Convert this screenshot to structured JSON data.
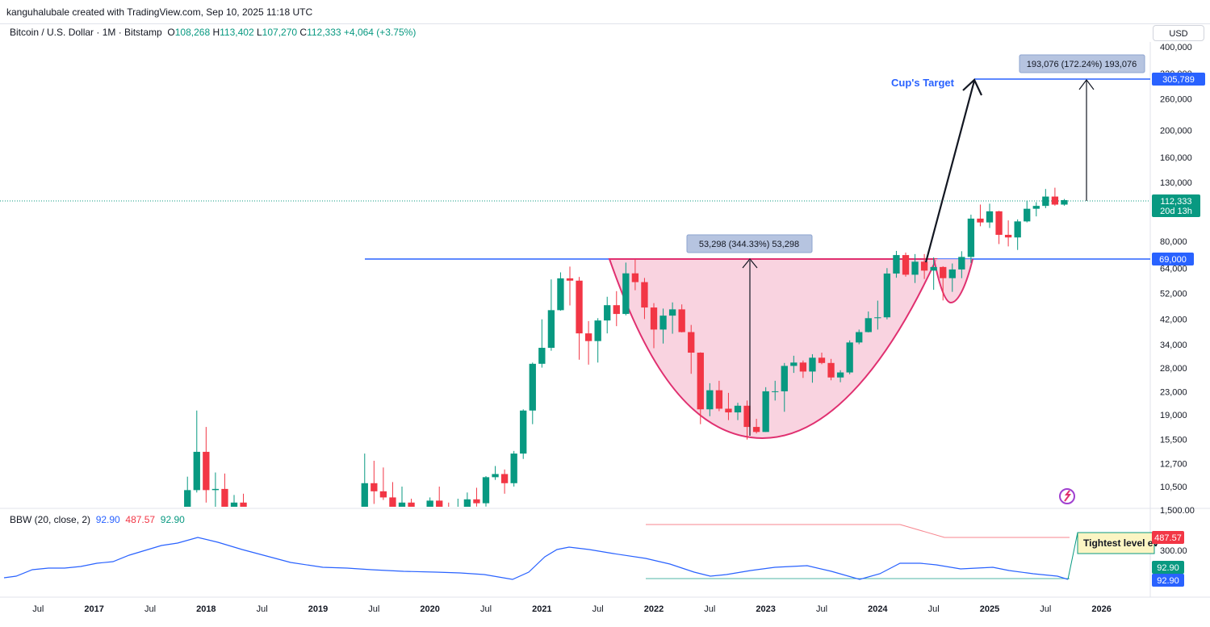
{
  "header": {
    "author_line": "kanguhalubale created with TradingView.com, Sep 10, 2025 11:18 UTC",
    "symbol_title": "Bitcoin / U.S. Dollar · 1M · Bitstamp",
    "open_label": "O",
    "open": "108,268",
    "high_label": "H",
    "high": "113,402",
    "low_label": "L",
    "low": "107,270",
    "close_label": "C",
    "close": "112,333",
    "change": "+4,064 (+3.75%)",
    "currency": "USD"
  },
  "indicator": {
    "title": "BBW (20, close, 2)",
    "v1": "92.90",
    "v2": "487.57",
    "v3": "92.90",
    "badge_high": "487.57",
    "badge_a": "92.90",
    "badge_b": "92.90",
    "axis_300": "300.00",
    "callout": "Tightest level ev"
  },
  "annotations": {
    "cup_measure": "53,298 (344.33%) 53,298",
    "target_measure": "193,076 (172.24%) 193,076",
    "cup_target_label": "Cup's Target",
    "price_badge": "112,333",
    "price_timer": "20d 13h",
    "level_target": "305,789",
    "level_rim": "69,000"
  },
  "colors": {
    "up": "#089981",
    "down": "#f23645",
    "cup_fill": "#f8c8d8",
    "cup_stroke": "#e03070",
    "level_line": "#2962ff",
    "bbw_line": "#2962ff"
  },
  "chart_data": {
    "type": "candlestick",
    "scale": "log",
    "price_axis": {
      "ticks": [
        "400,000",
        "320,000",
        "260,000",
        "200,000",
        "160,000",
        "130,000",
        "80,000",
        "64,000",
        "52,000",
        "42,000",
        "34,000",
        "28,000",
        "23,000",
        "19,000",
        "15,500",
        "12,700",
        "10,500",
        "1,500.00"
      ]
    },
    "time_axis": {
      "labels": [
        "Jul",
        "2017",
        "Jul",
        "2018",
        "Jul",
        "2019",
        "Jul",
        "2020",
        "Jul",
        "2021",
        "Jul",
        "2022",
        "Jul",
        "2023",
        "Jul",
        "2024",
        "Jul",
        "2025",
        "Jul",
        "2026"
      ],
      "bold": [
        false,
        true,
        false,
        true,
        false,
        true,
        false,
        true,
        false,
        true,
        false,
        true,
        false,
        true,
        false,
        true,
        false,
        true,
        false,
        true
      ]
    },
    "candles": [
      {
        "t": "2017-11",
        "o": 6450,
        "h": 11400,
        "l": 5500,
        "c": 10200
      },
      {
        "t": "2017-12",
        "o": 10200,
        "h": 19700,
        "l": 10000,
        "c": 14000
      },
      {
        "t": "2018-01",
        "o": 14000,
        "h": 17200,
        "l": 9200,
        "c": 10200
      },
      {
        "t": "2018-02",
        "o": 10200,
        "h": 11800,
        "l": 6000,
        "c": 10300
      },
      {
        "t": "2018-03",
        "o": 10300,
        "h": 11700,
        "l": 7000,
        "c": 7000
      },
      {
        "t": "2018-04",
        "o": 7000,
        "h": 9800,
        "l": 6500,
        "c": 9200
      },
      {
        "t": "2018-05",
        "o": 9200,
        "h": 9900,
        "l": 7200,
        "c": 7500
      },
      {
        "t": "2019-06",
        "o": 8500,
        "h": 13800,
        "l": 7600,
        "c": 10800
      },
      {
        "t": "2019-07",
        "o": 10800,
        "h": 13000,
        "l": 9100,
        "c": 10100
      },
      {
        "t": "2019-08",
        "o": 10100,
        "h": 12300,
        "l": 9400,
        "c": 9600
      },
      {
        "t": "2019-09",
        "o": 9600,
        "h": 10900,
        "l": 7700,
        "c": 8300
      },
      {
        "t": "2019-10",
        "o": 8300,
        "h": 10500,
        "l": 7300,
        "c": 9200
      },
      {
        "t": "2019-11",
        "o": 9200,
        "h": 9500,
        "l": 6500,
        "c": 7550
      },
      {
        "t": "2019-12",
        "o": 7550,
        "h": 7750,
        "l": 6400,
        "c": 7200
      },
      {
        "t": "2020-01",
        "o": 7200,
        "h": 9600,
        "l": 6900,
        "c": 9350
      },
      {
        "t": "2020-02",
        "o": 9350,
        "h": 10500,
        "l": 8500,
        "c": 8550
      },
      {
        "t": "2020-03",
        "o": 8550,
        "h": 9200,
        "l": 3800,
        "c": 6400
      },
      {
        "t": "2020-04",
        "o": 6400,
        "h": 9500,
        "l": 6200,
        "c": 8600
      },
      {
        "t": "2020-05",
        "o": 8600,
        "h": 10000,
        "l": 8100,
        "c": 9450
      },
      {
        "t": "2020-06",
        "o": 9450,
        "h": 10400,
        "l": 8900,
        "c": 9150
      },
      {
        "t": "2020-07",
        "o": 9150,
        "h": 11450,
        "l": 8900,
        "c": 11350
      },
      {
        "t": "2020-08",
        "o": 11350,
        "h": 12450,
        "l": 11100,
        "c": 11650
      },
      {
        "t": "2020-09",
        "o": 11650,
        "h": 12100,
        "l": 9900,
        "c": 10800
      },
      {
        "t": "2020-10",
        "o": 10800,
        "h": 14100,
        "l": 10500,
        "c": 13800
      },
      {
        "t": "2020-11",
        "o": 13800,
        "h": 19900,
        "l": 13200,
        "c": 19700
      },
      {
        "t": "2020-12",
        "o": 19700,
        "h": 29300,
        "l": 17600,
        "c": 29000
      },
      {
        "t": "2021-01",
        "o": 29000,
        "h": 41900,
        "l": 28100,
        "c": 33100
      },
      {
        "t": "2021-02",
        "o": 33100,
        "h": 58300,
        "l": 32300,
        "c": 45200
      },
      {
        "t": "2021-03",
        "o": 45200,
        "h": 61800,
        "l": 45000,
        "c": 58800
      },
      {
        "t": "2021-04",
        "o": 58800,
        "h": 64800,
        "l": 47000,
        "c": 57700
      },
      {
        "t": "2021-05",
        "o": 57700,
        "h": 59500,
        "l": 30000,
        "c": 37300
      },
      {
        "t": "2021-06",
        "o": 37300,
        "h": 41300,
        "l": 28800,
        "c": 35000
      },
      {
        "t": "2021-07",
        "o": 35000,
        "h": 42300,
        "l": 29300,
        "c": 41500
      },
      {
        "t": "2021-08",
        "o": 41500,
        "h": 50500,
        "l": 37300,
        "c": 47100
      },
      {
        "t": "2021-09",
        "o": 47100,
        "h": 52900,
        "l": 39600,
        "c": 43800
      },
      {
        "t": "2021-10",
        "o": 43800,
        "h": 67000,
        "l": 43300,
        "c": 61300
      },
      {
        "t": "2021-11",
        "o": 61300,
        "h": 69000,
        "l": 53300,
        "c": 57000
      },
      {
        "t": "2021-12",
        "o": 57000,
        "h": 59000,
        "l": 42000,
        "c": 46200
      },
      {
        "t": "2022-01",
        "o": 46200,
        "h": 47900,
        "l": 33000,
        "c": 38500
      },
      {
        "t": "2022-02",
        "o": 38500,
        "h": 45800,
        "l": 34300,
        "c": 43200
      },
      {
        "t": "2022-03",
        "o": 43200,
        "h": 48200,
        "l": 37200,
        "c": 45500
      },
      {
        "t": "2022-04",
        "o": 45500,
        "h": 47400,
        "l": 37600,
        "c": 37700
      },
      {
        "t": "2022-05",
        "o": 37700,
        "h": 40000,
        "l": 26700,
        "c": 31800
      },
      {
        "t": "2022-06",
        "o": 31800,
        "h": 31900,
        "l": 17600,
        "c": 19900
      },
      {
        "t": "2022-07",
        "o": 19900,
        "h": 24700,
        "l": 18800,
        "c": 23300
      },
      {
        "t": "2022-08",
        "o": 23300,
        "h": 25200,
        "l": 19600,
        "c": 20000
      },
      {
        "t": "2022-09",
        "o": 20000,
        "h": 22800,
        "l": 18200,
        "c": 19400
      },
      {
        "t": "2022-10",
        "o": 19400,
        "h": 21000,
        "l": 18200,
        "c": 20500
      },
      {
        "t": "2022-11",
        "o": 20500,
        "h": 21400,
        "l": 15500,
        "c": 17200
      },
      {
        "t": "2022-12",
        "o": 17200,
        "h": 18400,
        "l": 16300,
        "c": 16500
      },
      {
        "t": "2023-01",
        "o": 16500,
        "h": 23900,
        "l": 16500,
        "c": 23100
      },
      {
        "t": "2023-02",
        "o": 23100,
        "h": 25200,
        "l": 21400,
        "c": 23100
      },
      {
        "t": "2023-03",
        "o": 23100,
        "h": 29200,
        "l": 19500,
        "c": 28500
      },
      {
        "t": "2023-04",
        "o": 28500,
        "h": 31000,
        "l": 26900,
        "c": 29300
      },
      {
        "t": "2023-05",
        "o": 29300,
        "h": 29800,
        "l": 25800,
        "c": 27200
      },
      {
        "t": "2023-06",
        "o": 27200,
        "h": 31400,
        "l": 24800,
        "c": 30500
      },
      {
        "t": "2023-07",
        "o": 30500,
        "h": 31800,
        "l": 28900,
        "c": 29200
      },
      {
        "t": "2023-08",
        "o": 29200,
        "h": 30200,
        "l": 25300,
        "c": 25900
      },
      {
        "t": "2023-09",
        "o": 25900,
        "h": 27500,
        "l": 24900,
        "c": 27000
      },
      {
        "t": "2023-10",
        "o": 27000,
        "h": 35200,
        "l": 26600,
        "c": 34600
      },
      {
        "t": "2023-11",
        "o": 34600,
        "h": 38500,
        "l": 34100,
        "c": 37700
      },
      {
        "t": "2023-12",
        "o": 37700,
        "h": 44700,
        "l": 37600,
        "c": 42300
      },
      {
        "t": "2024-01",
        "o": 42300,
        "h": 48900,
        "l": 38500,
        "c": 42600
      },
      {
        "t": "2024-02",
        "o": 42600,
        "h": 64000,
        "l": 41900,
        "c": 61200
      },
      {
        "t": "2024-03",
        "o": 61200,
        "h": 73800,
        "l": 59100,
        "c": 71300
      },
      {
        "t": "2024-04",
        "o": 71300,
        "h": 72800,
        "l": 59600,
        "c": 60600
      },
      {
        "t": "2024-05",
        "o": 60600,
        "h": 71900,
        "l": 56600,
        "c": 67500
      },
      {
        "t": "2024-06",
        "o": 67500,
        "h": 71900,
        "l": 58500,
        "c": 62700
      },
      {
        "t": "2024-07",
        "o": 62700,
        "h": 70000,
        "l": 53500,
        "c": 64600
      },
      {
        "t": "2024-08",
        "o": 64600,
        "h": 65000,
        "l": 49000,
        "c": 58900
      },
      {
        "t": "2024-09",
        "o": 58900,
        "h": 66500,
        "l": 52600,
        "c": 63300
      },
      {
        "t": "2024-10",
        "o": 63300,
        "h": 73600,
        "l": 58900,
        "c": 70200
      },
      {
        "t": "2024-11",
        "o": 70200,
        "h": 99600,
        "l": 66800,
        "c": 96400
      },
      {
        "t": "2024-12",
        "o": 96400,
        "h": 108300,
        "l": 90500,
        "c": 93400
      },
      {
        "t": "2025-01",
        "o": 93400,
        "h": 109100,
        "l": 89200,
        "c": 102400
      },
      {
        "t": "2025-02",
        "o": 102400,
        "h": 102800,
        "l": 78100,
        "c": 84300
      },
      {
        "t": "2025-03",
        "o": 84300,
        "h": 95000,
        "l": 76600,
        "c": 82500
      },
      {
        "t": "2025-04",
        "o": 82500,
        "h": 95800,
        "l": 74400,
        "c": 94200
      },
      {
        "t": "2025-05",
        "o": 94200,
        "h": 111900,
        "l": 93400,
        "c": 104600
      },
      {
        "t": "2025-06",
        "o": 104600,
        "h": 110500,
        "l": 98200,
        "c": 107100
      },
      {
        "t": "2025-07",
        "o": 107100,
        "h": 123200,
        "l": 105100,
        "c": 115700
      },
      {
        "t": "2025-08",
        "o": 115700,
        "h": 124500,
        "l": 107300,
        "c": 108268
      },
      {
        "t": "2025-09",
        "o": 108268,
        "h": 113402,
        "l": 107270,
        "c": 112333
      }
    ]
  }
}
